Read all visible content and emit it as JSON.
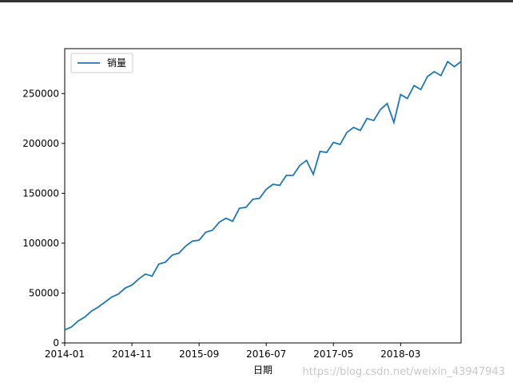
{
  "chart_data": {
    "type": "line",
    "x_label": "日期",
    "x": [
      "2014-01",
      "2014-02",
      "2014-03",
      "2014-04",
      "2014-05",
      "2014-06",
      "2014-07",
      "2014-08",
      "2014-09",
      "2014-10",
      "2014-11",
      "2014-12",
      "2015-01",
      "2015-02",
      "2015-03",
      "2015-04",
      "2015-05",
      "2015-06",
      "2015-07",
      "2015-08",
      "2015-09",
      "2015-10",
      "2015-11",
      "2015-12",
      "2016-01",
      "2016-02",
      "2016-03",
      "2016-04",
      "2016-05",
      "2016-06",
      "2016-07",
      "2016-08",
      "2016-09",
      "2016-10",
      "2016-11",
      "2016-12",
      "2017-01",
      "2017-02",
      "2017-03",
      "2017-04",
      "2017-05",
      "2017-06",
      "2017-07",
      "2017-08",
      "2017-09",
      "2017-10",
      "2017-11",
      "2017-12",
      "2018-01",
      "2018-02",
      "2018-03",
      "2018-04",
      "2018-05",
      "2018-06",
      "2018-07",
      "2018-08",
      "2018-09",
      "2018-10",
      "2018-11",
      "2018-12"
    ],
    "series": [
      {
        "name": "销量",
        "color": "#1f77b4",
        "values": [
          13000,
          16000,
          22000,
          26000,
          32000,
          36000,
          41000,
          46000,
          49000,
          55000,
          58000,
          64000,
          69000,
          67000,
          79000,
          81000,
          88000,
          90000,
          97000,
          102000,
          103000,
          111000,
          113000,
          121000,
          125000,
          122000,
          135000,
          136000,
          144000,
          145000,
          154000,
          159000,
          158000,
          168000,
          168000,
          178000,
          183000,
          169000,
          192000,
          191000,
          201000,
          199000,
          211000,
          216000,
          213000,
          225000,
          223000,
          234000,
          240000,
          221000,
          249000,
          245000,
          258000,
          254000,
          267000,
          272000,
          268000,
          282000,
          277000,
          282000
        ]
      }
    ],
    "xlim": [
      "2014-01",
      "2018-12"
    ],
    "xticks": [
      "2014-01",
      "2014-11",
      "2015-09",
      "2016-07",
      "2017-05",
      "2018-03"
    ],
    "ylim": [
      0,
      295000
    ],
    "yticks": [
      0,
      50000,
      100000,
      150000,
      200000,
      250000
    ],
    "legend": "upper left",
    "grid": false
  },
  "watermark": "https://blog.csdn.net/weixin_43947943"
}
